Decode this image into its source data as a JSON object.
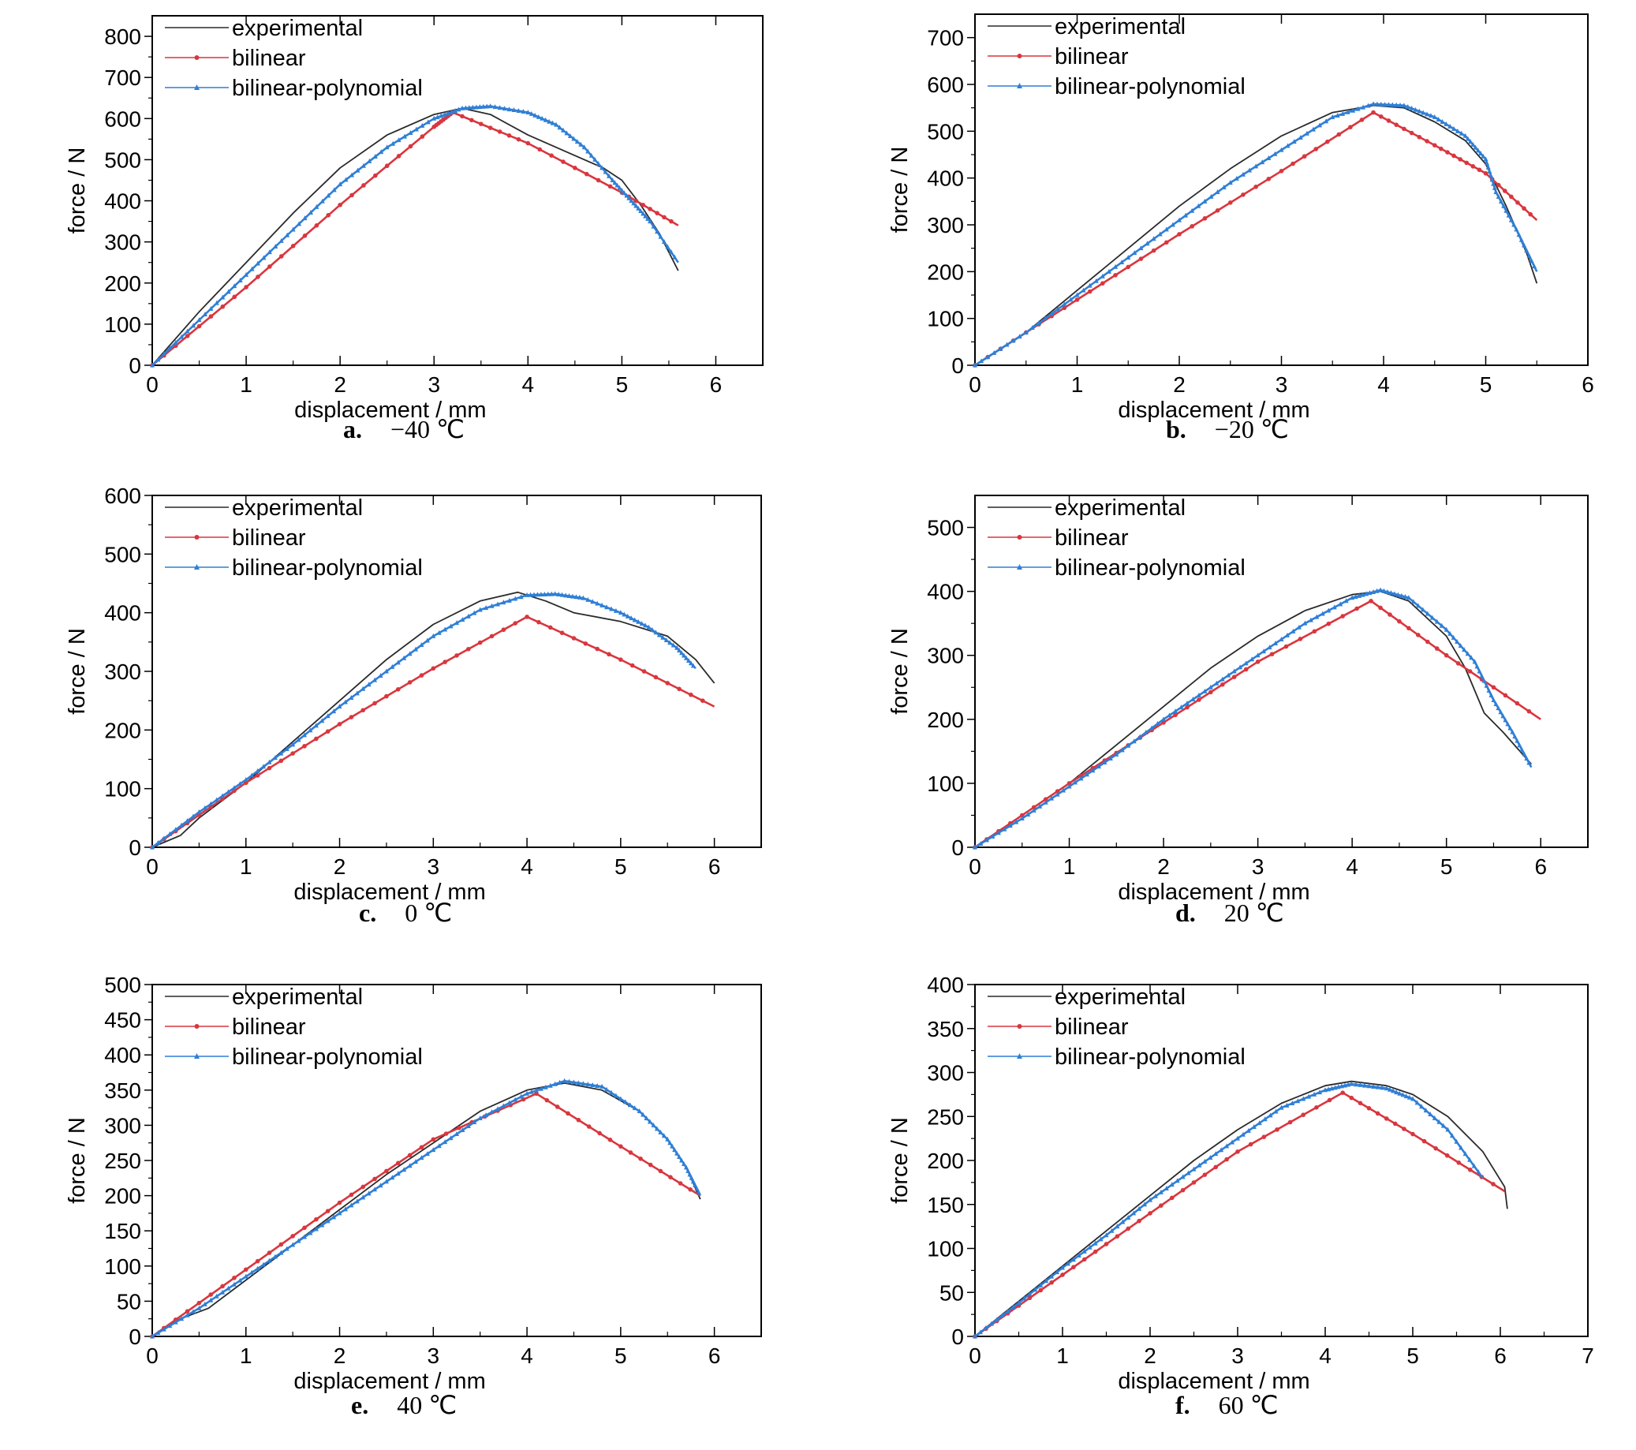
{
  "colors": {
    "experimental": "#2a2a2a",
    "bilinear": "#d9363e",
    "bilinear_polynomial": "#2f7fd6",
    "frame": "#000000"
  },
  "chart_data": [
    {
      "type": "line",
      "panel": "a",
      "caption_letter": "a.",
      "caption_text": "−40 ℃",
      "xlabel": "displacement / mm",
      "ylabel": "force / N",
      "xlim": [
        0,
        6.5
      ],
      "ylim": [
        0,
        850
      ],
      "xticks": [
        0,
        1,
        2,
        3,
        4,
        5,
        6
      ],
      "yticks": [
        0,
        100,
        200,
        300,
        400,
        500,
        600,
        700,
        800
      ],
      "legend_position": "top-left",
      "series": [
        {
          "name": "experimental",
          "x": [
            0,
            0.5,
            1.0,
            1.5,
            2.0,
            2.5,
            3.0,
            3.3,
            3.6,
            4.0,
            4.5,
            4.8,
            5.0,
            5.2,
            5.4,
            5.6
          ],
          "y": [
            0,
            130,
            250,
            370,
            480,
            560,
            610,
            625,
            610,
            560,
            510,
            480,
            450,
            390,
            320,
            230
          ]
        },
        {
          "name": "bilinear",
          "x": [
            0,
            1,
            2,
            3,
            3.2,
            4,
            5,
            5.6
          ],
          "y": [
            0,
            190,
            390,
            580,
            615,
            540,
            420,
            340
          ]
        },
        {
          "name": "bilinear-polynomial",
          "x": [
            0,
            0.5,
            1.0,
            1.5,
            2.0,
            2.5,
            3.0,
            3.3,
            3.6,
            4.0,
            4.3,
            4.6,
            4.9,
            5.1,
            5.3,
            5.6
          ],
          "y": [
            0,
            110,
            220,
            330,
            440,
            530,
            600,
            625,
            630,
            615,
            585,
            530,
            450,
            400,
            350,
            250
          ]
        }
      ]
    },
    {
      "type": "line",
      "panel": "b",
      "caption_letter": "b.",
      "caption_text": "−20 ℃",
      "xlabel": "displacement / mm",
      "ylabel": "force / N",
      "xlim": [
        0,
        6
      ],
      "ylim": [
        0,
        750
      ],
      "xticks": [
        0,
        1,
        2,
        3,
        4,
        5,
        6
      ],
      "yticks": [
        0,
        100,
        200,
        300,
        400,
        500,
        600,
        700
      ],
      "legend_position": "top-left",
      "series": [
        {
          "name": "experimental",
          "x": [
            0,
            0.5,
            1.0,
            1.5,
            2.0,
            2.5,
            3.0,
            3.5,
            3.9,
            4.2,
            4.5,
            4.8,
            5.0,
            5.2,
            5.4,
            5.5
          ],
          "y": [
            0,
            70,
            160,
            250,
            340,
            420,
            490,
            540,
            555,
            550,
            520,
            480,
            430,
            340,
            240,
            175
          ]
        },
        {
          "name": "bilinear",
          "x": [
            0,
            1,
            2,
            3,
            3.9,
            4.5,
            5,
            5.5
          ],
          "y": [
            0,
            140,
            280,
            415,
            540,
            470,
            410,
            310
          ]
        },
        {
          "name": "bilinear-polynomial",
          "x": [
            0,
            0.5,
            1.0,
            1.5,
            2.0,
            2.5,
            3.0,
            3.5,
            3.9,
            4.2,
            4.5,
            4.8,
            5.0,
            5.1,
            5.3,
            5.5
          ],
          "y": [
            0,
            70,
            150,
            230,
            310,
            390,
            460,
            530,
            558,
            555,
            530,
            490,
            440,
            370,
            290,
            200
          ]
        }
      ]
    },
    {
      "type": "line",
      "panel": "c",
      "caption_letter": "c.",
      "caption_text": "0 ℃",
      "xlabel": "displacement / mm",
      "ylabel": "force / N",
      "xlim": [
        0,
        6.5
      ],
      "ylim": [
        0,
        600
      ],
      "xticks": [
        0,
        1,
        2,
        3,
        4,
        5,
        6
      ],
      "yticks": [
        0,
        100,
        200,
        300,
        400,
        500,
        600
      ],
      "legend_position": "top-left",
      "series": [
        {
          "name": "experimental",
          "x": [
            0,
            0.3,
            0.5,
            1.0,
            1.5,
            2.0,
            2.5,
            3.0,
            3.5,
            3.9,
            4.2,
            4.5,
            5.0,
            5.5,
            5.8,
            6.0
          ],
          "y": [
            0,
            20,
            50,
            110,
            180,
            250,
            320,
            380,
            420,
            435,
            420,
            400,
            385,
            360,
            320,
            280
          ]
        },
        {
          "name": "bilinear",
          "x": [
            0,
            1,
            2,
            3,
            4,
            5,
            6
          ],
          "y": [
            0,
            110,
            210,
            305,
            393,
            320,
            240
          ]
        },
        {
          "name": "bilinear-polynomial",
          "x": [
            0,
            0.5,
            1.0,
            1.5,
            2.0,
            2.5,
            3.0,
            3.5,
            4.0,
            4.3,
            4.6,
            5.0,
            5.3,
            5.6,
            5.8
          ],
          "y": [
            0,
            60,
            115,
            175,
            240,
            300,
            360,
            405,
            430,
            432,
            425,
            400,
            375,
            340,
            305
          ]
        }
      ]
    },
    {
      "type": "line",
      "panel": "d",
      "caption_letter": "d.",
      "caption_text": "20 ℃",
      "xlabel": "displacement / mm",
      "ylabel": "force / N",
      "xlim": [
        0,
        6.5
      ],
      "ylim": [
        0,
        550
      ],
      "xticks": [
        0,
        1,
        2,
        3,
        4,
        5,
        6
      ],
      "yticks": [
        0,
        100,
        200,
        300,
        400,
        500
      ],
      "legend_position": "top-left",
      "series": [
        {
          "name": "experimental",
          "x": [
            0,
            0.5,
            1.0,
            1.5,
            2.0,
            2.5,
            3.0,
            3.5,
            4.0,
            4.3,
            4.6,
            5.0,
            5.2,
            5.4,
            5.6,
            5.9
          ],
          "y": [
            0,
            50,
            100,
            160,
            220,
            280,
            330,
            370,
            395,
            400,
            385,
            330,
            280,
            210,
            180,
            130
          ]
        },
        {
          "name": "bilinear",
          "x": [
            0,
            1,
            2,
            3,
            4.2,
            5,
            6
          ],
          "y": [
            0,
            100,
            195,
            290,
            385,
            300,
            200
          ]
        },
        {
          "name": "bilinear-polynomial",
          "x": [
            0,
            0.5,
            1.0,
            1.5,
            2.0,
            2.5,
            3.0,
            3.5,
            4.0,
            4.3,
            4.6,
            5.0,
            5.3,
            5.5,
            5.7,
            5.9
          ],
          "y": [
            0,
            45,
            95,
            145,
            200,
            250,
            300,
            350,
            390,
            402,
            390,
            340,
            290,
            230,
            180,
            125
          ]
        }
      ]
    },
    {
      "type": "line",
      "panel": "e",
      "caption_letter": "e.",
      "caption_text": "40 ℃",
      "xlabel": "displacement / mm",
      "ylabel": "force / N",
      "xlim": [
        0,
        6.5
      ],
      "ylim": [
        0,
        500
      ],
      "xticks": [
        0,
        1,
        2,
        3,
        4,
        5,
        6
      ],
      "yticks": [
        0,
        50,
        100,
        150,
        200,
        250,
        300,
        350,
        400,
        450,
        500
      ],
      "legend_position": "top-left",
      "series": [
        {
          "name": "experimental",
          "x": [
            0,
            0.3,
            0.6,
            1.0,
            1.5,
            2.0,
            2.5,
            3.0,
            3.5,
            4.0,
            4.4,
            4.8,
            5.2,
            5.5,
            5.7,
            5.85
          ],
          "y": [
            0,
            25,
            40,
            80,
            130,
            180,
            230,
            275,
            320,
            350,
            360,
            350,
            320,
            280,
            240,
            195
          ]
        },
        {
          "name": "bilinear",
          "x": [
            0,
            1,
            2,
            3,
            4.1,
            5,
            5.85
          ],
          "y": [
            0,
            95,
            190,
            280,
            345,
            270,
            200
          ]
        },
        {
          "name": "bilinear-polynomial",
          "x": [
            0,
            0.5,
            1.0,
            1.5,
            2.0,
            2.5,
            3.0,
            3.5,
            4.0,
            4.4,
            4.8,
            5.2,
            5.5,
            5.7,
            5.85
          ],
          "y": [
            0,
            40,
            85,
            130,
            175,
            220,
            265,
            310,
            345,
            363,
            355,
            320,
            280,
            240,
            200
          ]
        }
      ]
    },
    {
      "type": "line",
      "panel": "f",
      "caption_letter": "f.",
      "caption_text": "60 ℃",
      "xlabel": "displacement / mm",
      "ylabel": "force / N",
      "xlim": [
        0,
        7
      ],
      "ylim": [
        0,
        400
      ],
      "xticks": [
        0,
        1,
        2,
        3,
        4,
        5,
        6,
        7
      ],
      "yticks": [
        0,
        50,
        100,
        150,
        200,
        250,
        300,
        350,
        400
      ],
      "legend_position": "top-left",
      "series": [
        {
          "name": "experimental",
          "x": [
            0,
            0.5,
            1.0,
            1.5,
            2.0,
            2.5,
            3.0,
            3.5,
            4.0,
            4.3,
            4.7,
            5.0,
            5.4,
            5.8,
            6.05,
            6.08
          ],
          "y": [
            0,
            40,
            80,
            120,
            160,
            200,
            235,
            265,
            285,
            290,
            285,
            275,
            250,
            210,
            170,
            145
          ]
        },
        {
          "name": "bilinear",
          "x": [
            0,
            1,
            2,
            3,
            4.2,
            5,
            6.05
          ],
          "y": [
            0,
            70,
            140,
            210,
            277,
            230,
            165
          ]
        },
        {
          "name": "bilinear-polynomial",
          "x": [
            0,
            0.5,
            1.0,
            1.5,
            2.0,
            2.5,
            3.0,
            3.5,
            4.0,
            4.3,
            4.7,
            5.0,
            5.4,
            5.8
          ],
          "y": [
            0,
            38,
            78,
            115,
            155,
            190,
            225,
            260,
            280,
            287,
            282,
            270,
            235,
            180
          ]
        }
      ]
    }
  ]
}
